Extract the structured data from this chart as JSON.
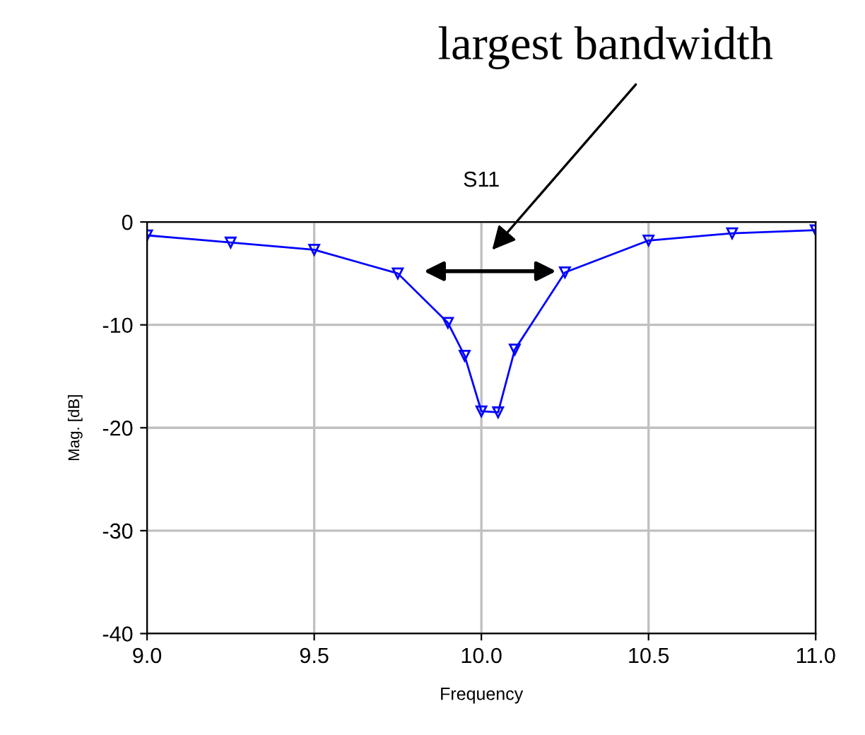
{
  "chart_data": {
    "type": "line",
    "title": "S11",
    "xlabel": "Frequency",
    "ylabel": "Mag. [dB]",
    "annotations": [
      "largest bandwidth"
    ],
    "x": [
      9.0,
      9.25,
      9.5,
      9.75,
      9.9,
      9.95,
      10.0,
      10.05,
      10.1,
      10.25,
      10.5,
      10.75,
      11.0
    ],
    "series": [
      {
        "color": "#0000ff",
        "values": [
          -1.3,
          -2.0,
          -2.7,
          -5.0,
          -9.8,
          -13.0,
          -18.4,
          -18.5,
          -12.4,
          -4.9,
          -1.8,
          -1.1,
          -0.8
        ]
      }
    ],
    "xlim": [
      9.0,
      11.0
    ],
    "xticks": [
      {
        "value": 9.0,
        "label": "9.0"
      },
      {
        "value": 9.5,
        "label": "9.5"
      },
      {
        "value": 10.0,
        "label": "10.0"
      },
      {
        "value": 10.5,
        "label": "10.5"
      },
      {
        "value": 11.0,
        "label": "11.0"
      }
    ],
    "ylim": [
      -40,
      0
    ],
    "yticks": [
      -40,
      -30,
      -20,
      -10,
      0
    ],
    "grid": true,
    "marker": "triangle",
    "line_style": "solid"
  }
}
